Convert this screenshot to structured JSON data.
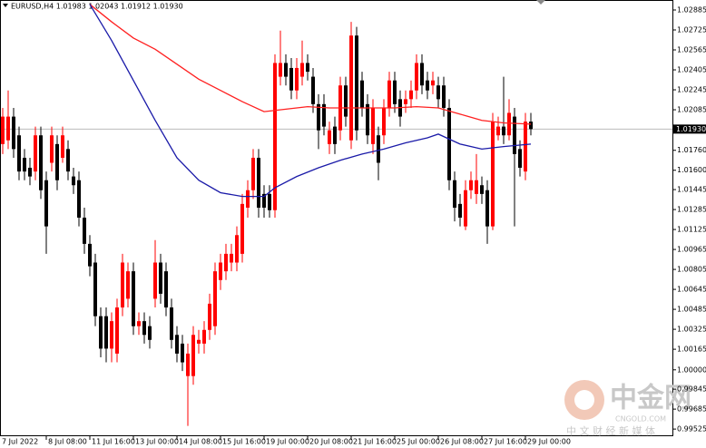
{
  "chart_data": {
    "type": "candlestick",
    "title": "EURUSD,H4 1.01983 1.02043 1.01912 1.01930",
    "categories": [
      "7 Jul 2022",
      null,
      null,
      null,
      null,
      null,
      null,
      null,
      "8 Jul 08:00",
      null,
      null,
      null,
      null,
      null,
      null,
      null,
      "11 Jul 16:00",
      null,
      null,
      null,
      null,
      null,
      null,
      null,
      "13 Jul 00:00",
      null,
      null,
      null,
      null,
      null,
      null,
      null,
      "14 Jul 08:00",
      null,
      null,
      null,
      null,
      null,
      null,
      null,
      "15 Jul 16:00",
      null,
      null,
      null,
      null,
      null,
      null,
      null,
      "19 Jul 00:00",
      null,
      null,
      null,
      null,
      null,
      null,
      null,
      "20 Jul 08:00",
      null,
      null,
      null,
      null,
      null,
      null,
      null,
      "21 Jul 16:00",
      null,
      null,
      null,
      null,
      null,
      null,
      null,
      "25 Jul 00:00",
      null,
      null,
      null,
      null,
      null,
      null,
      null,
      "26 Jul 08:00",
      null,
      null,
      null,
      null,
      null,
      null,
      null,
      "27 Jul 16:00",
      null,
      null,
      null,
      null,
      null,
      null,
      null,
      "29 Jul 00:00",
      null
    ],
    "open": [
      1.0181,
      1.0184,
      1.0203,
      1.0188,
      1.017,
      1.0162,
      1.0159,
      1.0188,
      1.0152,
      1.0166,
      1.0181,
      1.017,
      1.0177,
      1.0155,
      1.0152,
      1.0122,
      1.0101,
      1.0086,
      1.0043,
      1.0043,
      1.0017,
      1.0013,
      1.005,
      1.0057,
      1.0079,
      1.0035,
      1.0039,
      1.0035,
      1.0057,
      1.0086,
      1.0079,
      1.005,
      1.0028,
      1.0021,
      0.9995,
      0.9995,
      1.0021,
      1.0021,
      1.0032,
      1.0035,
      1.0072,
      1.0079,
      1.0086,
      1.0086,
      1.0093,
      1.013,
      1.0144,
      1.017,
      1.0141,
      1.0141,
      1.0128,
      1.0235,
      1.0246,
      1.0242,
      1.0224,
      1.0235,
      1.0246,
      1.0235,
      1.0213,
      1.0213,
      1.0181,
      1.0195,
      1.0192,
      1.0228,
      1.0184,
      1.0268,
      1.0232,
      1.0213,
      1.0181,
      1.0188,
      1.0188,
      1.021,
      1.0232,
      1.0217,
      1.0213,
      1.0217,
      1.0224,
      1.0246,
      1.0232,
      1.0228,
      1.0228,
      1.0228,
      1.021,
      1.0152,
      1.0133,
      1.0115,
      1.0144,
      1.0141,
      1.0148,
      1.0144,
      1.0115,
      1.0188,
      1.0195,
      1.0188,
      1.0203,
      1.0177,
      1.0159,
      1.0199
    ],
    "high": [
      1.021,
      1.0224,
      1.021,
      1.0195,
      1.0177,
      1.017,
      1.0195,
      1.0195,
      1.0159,
      1.0195,
      1.0188,
      1.0195,
      1.0184,
      1.0162,
      1.0159,
      1.013,
      1.0108,
      1.0093,
      1.005,
      1.005,
      1.0046,
      1.0057,
      1.0093,
      1.0086,
      1.0086,
      1.0046,
      1.0046,
      1.0043,
      1.0104,
      1.0093,
      1.0086,
      1.0057,
      1.0035,
      1.0028,
      1.0021,
      1.0035,
      1.0032,
      1.0039,
      1.0061,
      1.0086,
      1.0093,
      1.0101,
      1.0101,
      1.0115,
      1.0141,
      1.0152,
      1.0177,
      1.0177,
      1.0148,
      1.0148,
      1.0253,
      1.0272,
      1.0253,
      1.025,
      1.025,
      1.0264,
      1.0253,
      1.0242,
      1.0221,
      1.0221,
      1.0199,
      1.0203,
      1.0235,
      1.0235,
      1.0279,
      1.0275,
      1.0239,
      1.0221,
      1.0217,
      1.0195,
      1.0217,
      1.0239,
      1.0239,
      1.0224,
      1.0224,
      1.0232,
      1.0253,
      1.0253,
      1.0239,
      1.0239,
      1.0235,
      1.0235,
      1.0217,
      1.0159,
      1.0141,
      1.0152,
      1.0159,
      1.0173,
      1.0155,
      1.0152,
      1.0206,
      1.0203,
      1.0235,
      1.0217,
      1.021,
      1.0184,
      1.0206,
      1.0206
    ],
    "low": [
      1.0173,
      1.0177,
      1.017,
      1.0152,
      1.0152,
      1.0148,
      1.0152,
      1.0137,
      1.0093,
      1.0159,
      1.0144,
      1.0166,
      1.0152,
      1.0141,
      1.0115,
      1.0093,
      1.0075,
      1.0035,
      1.001,
      1.0006,
      1.0006,
      1.0006,
      1.0043,
      1.005,
      1.0028,
      1.0028,
      1.0021,
      1.0017,
      1.005,
      1.0053,
      1.0043,
      1.0017,
      1.0006,
      0.9999,
      0.9955,
      0.9988,
      1.0013,
      1.0013,
      1.0024,
      1.0028,
      1.0064,
      1.0072,
      1.0079,
      1.0079,
      1.0086,
      1.0122,
      1.0137,
      1.0122,
      1.0122,
      1.0122,
      1.0122,
      1.0228,
      1.0228,
      1.0217,
      1.0217,
      1.0228,
      1.0232,
      1.0206,
      1.0177,
      1.0188,
      1.0173,
      1.0173,
      1.0184,
      1.0195,
      1.0177,
      1.0184,
      1.0203,
      1.0181,
      1.0173,
      1.0152,
      1.0181,
      1.0203,
      1.0206,
      1.0195,
      1.0206,
      1.021,
      1.0217,
      1.0221,
      1.0217,
      1.0221,
      1.021,
      1.0203,
      1.0144,
      1.0119,
      1.0115,
      1.0112,
      1.0137,
      1.0133,
      1.0133,
      1.0101,
      1.0112,
      1.0184,
      1.0181,
      1.0184,
      1.0115,
      1.0155,
      1.0152,
      1.0188
    ],
    "close": [
      1.0203,
      1.0203,
      1.0177,
      1.0159,
      1.0159,
      1.0155,
      1.0188,
      1.0144,
      1.0115,
      1.0188,
      1.0152,
      1.0188,
      1.0159,
      1.0148,
      1.0122,
      1.0101,
      1.0083,
      1.0043,
      1.0017,
      1.0017,
      1.0039,
      1.005,
      1.0086,
      1.0079,
      1.0035,
      1.0039,
      1.0028,
      1.0024,
      1.0086,
      1.0061,
      1.005,
      1.0024,
      1.0013,
      1.0006,
      1.0013,
      1.0028,
      1.0024,
      1.0032,
      1.0053,
      1.0079,
      1.0086,
      1.0093,
      1.0093,
      1.0108,
      1.0133,
      1.0144,
      1.017,
      1.013,
      1.013,
      1.0128,
      1.0246,
      1.0246,
      1.0235,
      1.0224,
      1.0242,
      1.0246,
      1.0239,
      1.0213,
      1.0192,
      1.0195,
      1.0192,
      1.0181,
      1.0228,
      1.0203,
      1.0268,
      1.0192,
      1.021,
      1.0188,
      1.021,
      1.0166,
      1.021,
      1.0232,
      1.0213,
      1.0203,
      1.0217,
      1.0224,
      1.0246,
      1.0228,
      1.0224,
      1.0232,
      1.0217,
      1.021,
      1.0152,
      1.013,
      1.0122,
      1.0144,
      1.0152,
      1.0152,
      1.0141,
      1.0115,
      1.0199,
      1.0195,
      1.0188,
      1.0206,
      1.0173,
      1.0162,
      1.0199,
      1.0193
    ],
    "up_color": "#ff0000",
    "down_color": "#000000",
    "overlays": [
      {
        "color": "#ff2020",
        "x": [
          16,
          20,
          24,
          28,
          32,
          36,
          40,
          44,
          48,
          52,
          56,
          60,
          64,
          68,
          72,
          76,
          80,
          84,
          88,
          92,
          97
        ],
        "values": [
          1.0293,
          1.0279,
          1.0266,
          1.0257,
          1.0245,
          1.0233,
          1.0224,
          1.0215,
          1.0207,
          1.0209,
          1.0211,
          1.021,
          1.021,
          1.021,
          1.021,
          1.0211,
          1.021,
          1.0205,
          1.02,
          1.0198,
          1.0197
        ]
      },
      {
        "color": "#1a1aa8",
        "x": [
          16,
          20,
          24,
          28,
          32,
          36,
          40,
          44,
          48,
          50,
          54,
          58,
          62,
          66,
          70,
          74,
          78,
          80,
          84,
          88,
          92,
          97
        ],
        "values": [
          1.0293,
          1.0264,
          1.0232,
          1.02,
          1.017,
          1.0152,
          1.0142,
          1.0139,
          1.0139,
          1.0146,
          1.0155,
          1.0162,
          1.0168,
          1.0173,
          1.0177,
          1.0182,
          1.0186,
          1.0189,
          1.0181,
          1.0177,
          1.0179,
          1.0181
        ]
      }
    ],
    "last_price": {
      "value": 1.0193,
      "label": "1.01930"
    },
    "ylim": [
      0.99475,
      1.02965
    ],
    "yticks": [
      1.02885,
      1.02725,
      1.02565,
      1.02405,
      1.02245,
      1.02085,
      {
        "value": 1.0176,
        "label": "1.01760"
      },
      {
        "value": 1.016,
        "label": "1.01600"
      },
      1.01445,
      1.01285,
      1.01125,
      1.00965,
      1.00805,
      1.00645,
      1.00485,
      1.00325,
      1.00165,
      {
        "value": 1,
        "label": "1.00000"
      },
      0.99845,
      0.99685,
      0.99525
    ]
  },
  "watermark": {
    "brand": "中金网",
    "site": "CNGOLD.COM",
    "tagline": "中 文 财 经 新 媒 体"
  }
}
